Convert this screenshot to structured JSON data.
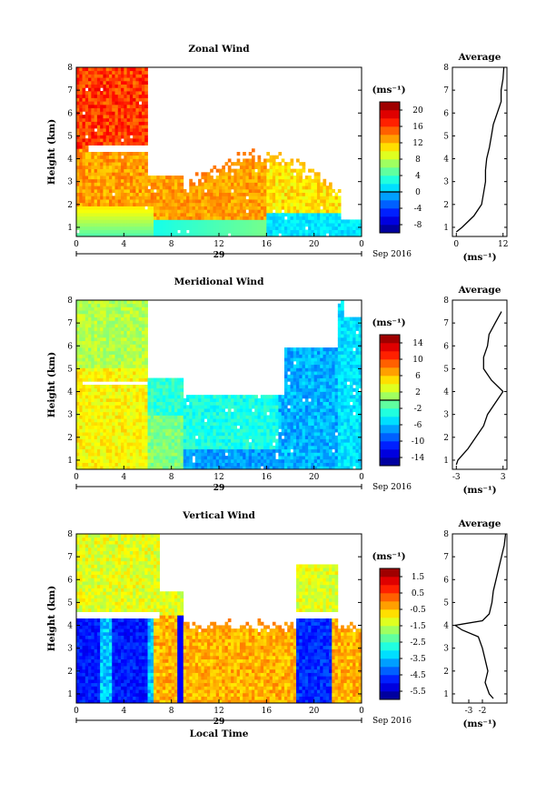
{
  "date_label": "Sep 2016",
  "x_axis_label": "Local Time",
  "panels": [
    {
      "id": "zonal",
      "title": "Zonal Wind",
      "unit": "(ms⁻¹)",
      "colorbar_ticks": [
        "20",
        "16",
        "12",
        "8",
        "4",
        "0",
        "-4",
        "-8"
      ],
      "avg_title": "Average",
      "avg_xticks": [
        "0",
        "12"
      ],
      "avg_unit": "(ms⁻¹)"
    },
    {
      "id": "meridional",
      "title": "Meridional Wind",
      "unit": "(ms⁻¹)",
      "colorbar_ticks": [
        "14",
        "10",
        "6",
        "2",
        "-2",
        "-6",
        "-10",
        "-14"
      ],
      "avg_title": "Average",
      "avg_xticks": [
        "-3",
        "3"
      ],
      "avg_unit": "(ms⁻¹)"
    },
    {
      "id": "vertical",
      "title": "Vertical Wind",
      "unit": "(ms⁻¹)",
      "colorbar_ticks": [
        "1.5",
        "0.5",
        "-0.5",
        "-1.5",
        "-2.5",
        "-3.5",
        "-4.5",
        "-5.5"
      ],
      "avg_title": "Average",
      "avg_xticks": [
        "-3",
        "-2"
      ],
      "avg_unit": "(ms⁻¹)"
    }
  ],
  "chart_data": [
    {
      "type": "heatmap",
      "title": "Zonal Wind",
      "xlabel": "",
      "ylabel": "Height (km)",
      "x_ticks": [
        "0",
        "4",
        "8",
        "12",
        "16",
        "20",
        "0"
      ],
      "day_label": "29",
      "y_ticks": [
        "1",
        "2",
        "3",
        "4",
        "5",
        "6",
        "7",
        "8"
      ],
      "xlim_hours": [
        0,
        24
      ],
      "ylim_km": [
        0.6,
        8.0
      ],
      "colorbar": {
        "min": -10,
        "max": 22,
        "ticks": [
          20,
          16,
          12,
          8,
          4,
          0,
          -4,
          -8
        ],
        "contour_level": 0
      },
      "average_profile": {
        "title": "Average",
        "xlim": [
          -1,
          13
        ],
        "xticks": [
          0,
          12
        ],
        "height_km": [
          0.8,
          1.0,
          1.5,
          2.0,
          2.5,
          3.0,
          3.5,
          4.0,
          4.5,
          5.0,
          5.5,
          6.0,
          6.5,
          7.0,
          7.5,
          8.0
        ],
        "value": [
          0.0,
          1.5,
          4.5,
          6.5,
          7.0,
          7.5,
          7.5,
          7.8,
          8.5,
          9.0,
          9.5,
          10.5,
          11.5,
          11.5,
          12.0,
          12.2
        ]
      }
    },
    {
      "type": "heatmap",
      "title": "Meridional Wind",
      "xlabel": "",
      "ylabel": "Height (km)",
      "x_ticks": [
        "0",
        "4",
        "8",
        "12",
        "16",
        "20",
        "0"
      ],
      "day_label": "29",
      "y_ticks": [
        "1",
        "2",
        "3",
        "4",
        "5",
        "6",
        "7",
        "8"
      ],
      "xlim_hours": [
        0,
        24
      ],
      "ylim_km": [
        0.6,
        8.0
      ],
      "colorbar": {
        "min": -16,
        "max": 16,
        "ticks": [
          14,
          10,
          6,
          2,
          -2,
          -6,
          -10,
          -14
        ],
        "contour_level": 0
      },
      "average_profile": {
        "title": "Average",
        "xlim": [
          -3.5,
          3.5
        ],
        "xticks": [
          -3,
          3
        ],
        "height_km": [
          0.8,
          1.0,
          1.5,
          2.0,
          2.5,
          3.0,
          3.5,
          4.0,
          4.5,
          5.0,
          5.5,
          6.0,
          6.5,
          7.0,
          7.5
        ],
        "value": [
          -3.0,
          -2.8,
          -1.5,
          -0.5,
          0.5,
          1.0,
          2.0,
          3.0,
          1.5,
          0.5,
          0.5,
          1.0,
          1.2,
          2.0,
          2.8
        ]
      }
    },
    {
      "type": "heatmap",
      "title": "Vertical Wind",
      "xlabel": "Local Time",
      "ylabel": "Height (km)",
      "x_ticks": [
        "0",
        "4",
        "8",
        "12",
        "16",
        "20",
        "0"
      ],
      "day_label": "29",
      "y_ticks": [
        "1",
        "2",
        "3",
        "4",
        "5",
        "6",
        "7",
        "8"
      ],
      "xlim_hours": [
        0,
        24
      ],
      "ylim_km": [
        0.6,
        8.0
      ],
      "colorbar": {
        "min": -6.0,
        "max": 2.0,
        "ticks": [
          1.5,
          0.5,
          -0.5,
          -1.5,
          -2.5,
          -3.5,
          -4.5,
          -5.5
        ]
      },
      "average_profile": {
        "title": "Average",
        "xlim": [
          -4.2,
          -0.2
        ],
        "xticks": [
          -3,
          -2
        ],
        "height_km": [
          0.8,
          1.0,
          1.5,
          2.0,
          2.5,
          3.0,
          3.5,
          3.8,
          4.0,
          4.2,
          4.5,
          5.0,
          5.5,
          6.0,
          6.5,
          7.0,
          7.5,
          8.0
        ],
        "value": [
          -1.2,
          -1.5,
          -1.8,
          -1.6,
          -1.8,
          -2.0,
          -2.3,
          -3.5,
          -4.0,
          -2.0,
          -1.5,
          -1.3,
          -1.2,
          -1.0,
          -0.8,
          -0.6,
          -0.4,
          -0.3
        ]
      }
    }
  ]
}
